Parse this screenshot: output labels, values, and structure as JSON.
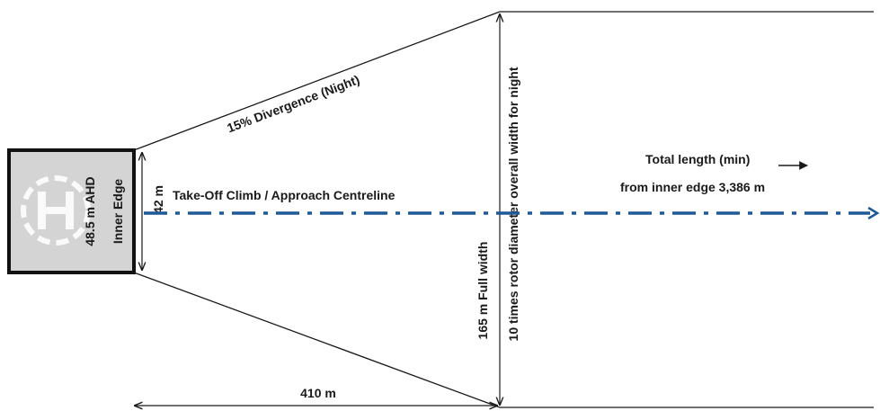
{
  "labels": {
    "divergence": "15% Divergence (Night)",
    "centreline": "Take-Off Climb / Approach Centreline",
    "total_length_line1": "Total length (min)",
    "total_length_line2": "from inner edge 3,386 m",
    "inner_edge_width": "42 m",
    "inner_edge": "Inner Edge",
    "elevation": "48.5 m AHD",
    "full_width": "165 m Full width",
    "rotor_note": "10 times rotor diameter overall width for night",
    "divergence_length": "410 m"
  },
  "colors": {
    "centreline": "#1f5a96",
    "pad_fill": "#d4d4d4",
    "lines": "#1a1a1a"
  },
  "icons": {
    "helipad_marking": "helipad-h-circle-icon"
  }
}
